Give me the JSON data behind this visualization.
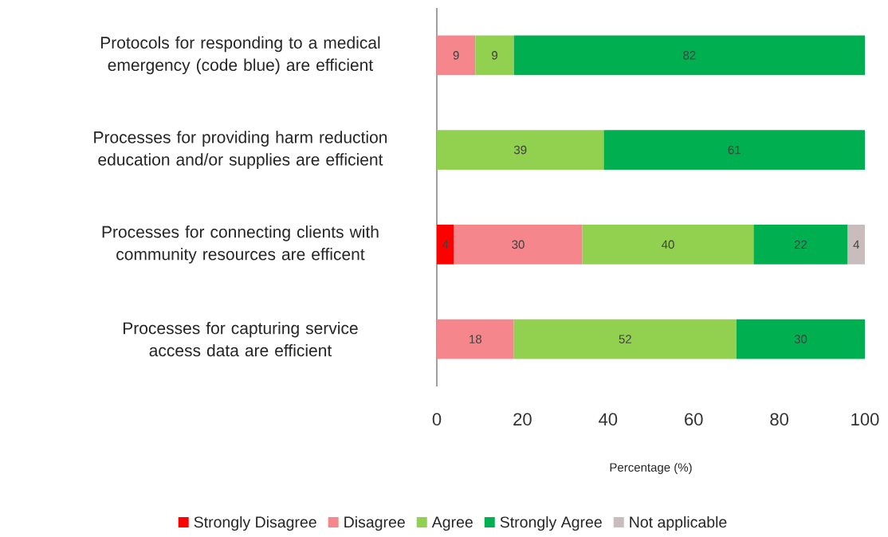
{
  "chart_data": {
    "type": "bar",
    "orientation": "horizontal",
    "stacked": true,
    "data_labels": true,
    "legend": "bottom",
    "grid": false,
    "xlabel": "Percentage (%)",
    "categories": [
      "Protocols for responding to a medical emergency (code blue) are efficient",
      "Processes for providing harm reduction education and/or supplies are efficient",
      "Processes for connecting clients with community resources are efficent",
      "Processes for capturing service access data are efficient"
    ],
    "series": [
      {
        "name": "Strongly Disagree",
        "color": "#ff0000",
        "values": [
          null,
          null,
          4,
          null
        ]
      },
      {
        "name": "Disagree",
        "color": "#f4868c",
        "values": [
          9,
          null,
          30,
          18
        ]
      },
      {
        "name": "Agree",
        "color": "#92d050",
        "values": [
          9,
          39,
          40,
          52
        ]
      },
      {
        "name": "Strongly Agree",
        "color": "#00b050",
        "values": [
          82,
          61,
          22,
          30
        ]
      },
      {
        "name": "Not applicable",
        "color": "#c9bcbc",
        "values": [
          null,
          null,
          4,
          null
        ]
      }
    ],
    "xlim": [
      0,
      100
    ],
    "xticks": [
      0,
      20,
      40,
      60,
      80,
      100
    ]
  }
}
